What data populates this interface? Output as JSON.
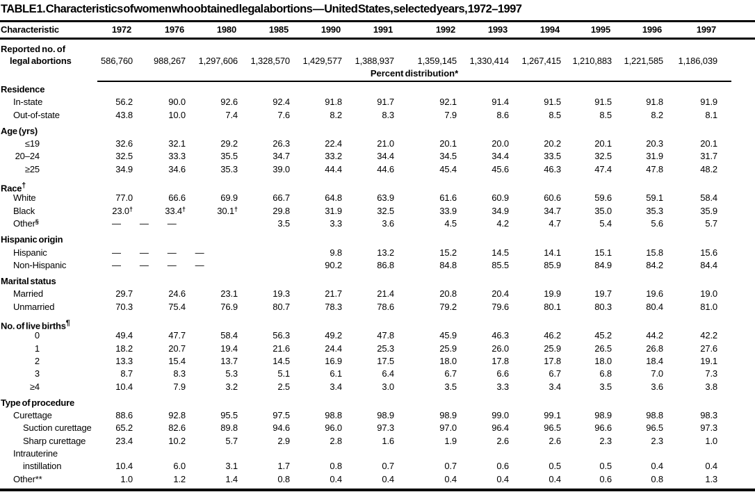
{
  "title": "TABLE 1. Characteristics of women who obtained legal abortions — United States, selected years, 1972–1997",
  "table": {
    "col_header": "Characteristic",
    "years": [
      "1972",
      "1976",
      "1980",
      "1985",
      "1990",
      "1991",
      "1992",
      "1993",
      "1994",
      "1995",
      "1996",
      "1997"
    ],
    "reported": {
      "line1": "Reported no. of",
      "line2": "legal abortions",
      "values": [
        "586,760",
        "988,267",
        "1,297,606",
        "1,328,570",
        "1,429,577",
        "1,388,937",
        "1,359,145",
        "1,330,414",
        "1,267,415",
        "1,210,883",
        "1,221,585",
        "1,186,039"
      ]
    },
    "subheader": "Percent distribution*",
    "dash": "—",
    "sections": [
      {
        "label": "Residence",
        "rows": [
          {
            "label": "In-state",
            "indent": 1,
            "values": [
              "56.2",
              "90.0",
              "92.6",
              "92.4",
              "91.8",
              "91.7",
              "92.1",
              "91.4",
              "91.5",
              "91.5",
              "91.8",
              "91.9"
            ]
          },
          {
            "label": "Out-of-state",
            "indent": 1,
            "values": [
              "43.8",
              "10.0",
              "7.4",
              "7.6",
              "8.2",
              "8.3",
              "7.9",
              "8.6",
              "8.5",
              "8.5",
              "8.2",
              "8.1"
            ]
          }
        ]
      },
      {
        "label": "Age (yrs)",
        "rows": [
          {
            "label": "≤19",
            "numlab": true,
            "values": [
              "32.6",
              "32.1",
              "29.2",
              "26.3",
              "22.4",
              "21.0",
              "20.1",
              "20.0",
              "20.2",
              "20.1",
              "20.3",
              "20.1"
            ]
          },
          {
            "label": "20–24",
            "numlab": true,
            "values": [
              "32.5",
              "33.3",
              "35.5",
              "34.7",
              "33.2",
              "34.4",
              "34.5",
              "34.4",
              "33.5",
              "32.5",
              "31.9",
              "31.7"
            ]
          },
          {
            "label": "≥25",
            "numlab": true,
            "values": [
              "34.9",
              "34.6",
              "35.3",
              "39.0",
              "44.4",
              "44.6",
              "45.4",
              "45.6",
              "46.3",
              "47.4",
              "47.8",
              "48.2"
            ]
          }
        ]
      },
      {
        "label": "Race",
        "sup": "†",
        "rows": [
          {
            "label": "White",
            "indent": 1,
            "values": [
              "77.0",
              "66.6",
              "69.9",
              "66.7",
              "64.8",
              "63.9",
              "61.6",
              "60.9",
              "60.6",
              "59.6",
              "59.1",
              "58.4"
            ]
          },
          {
            "label": "Black",
            "indent": 1,
            "values": [
              "23.0†",
              "33.4†",
              "30.1†",
              "29.8",
              "31.9",
              "32.5",
              "33.9",
              "34.9",
              "34.7",
              "35.0",
              "35.3",
              "35.9"
            ]
          },
          {
            "label": "Other",
            "sup": "§",
            "indent": 1,
            "dashes": 3,
            "values": [
              "3.5",
              "3.3",
              "3.6",
              "4.5",
              "4.2",
              "4.7",
              "5.4",
              "5.6",
              "5.7"
            ]
          }
        ]
      },
      {
        "label": "Hispanic origin",
        "rows": [
          {
            "label": "Hispanic",
            "indent": 1,
            "dashes": 4,
            "values": [
              "9.8",
              "13.2",
              "15.2",
              "14.5",
              "14.1",
              "15.1",
              "15.8",
              "15.6"
            ]
          },
          {
            "label": "Non-Hispanic",
            "indent": 1,
            "dashes": 4,
            "values": [
              "90.2",
              "86.8",
              "84.8",
              "85.5",
              "85.9",
              "84.9",
              "84.2",
              "84.4"
            ]
          }
        ]
      },
      {
        "label": "Marital status",
        "rows": [
          {
            "label": "Married",
            "indent": 1,
            "values": [
              "29.7",
              "24.6",
              "23.1",
              "19.3",
              "21.7",
              "21.4",
              "20.8",
              "20.4",
              "19.9",
              "19.7",
              "19.6",
              "19.0"
            ]
          },
          {
            "label": "Unmarried",
            "indent": 1,
            "values": [
              "70.3",
              "75.4",
              "76.9",
              "80.7",
              "78.3",
              "78.6",
              "79.2",
              "79.6",
              "80.1",
              "80.3",
              "80.4",
              "81.0"
            ]
          }
        ]
      },
      {
        "label": "No. of live births",
        "sup": "¶",
        "rows": [
          {
            "label": "0",
            "numlab": true,
            "values": [
              "49.4",
              "47.7",
              "58.4",
              "56.3",
              "49.2",
              "47.8",
              "45.9",
              "46.3",
              "46.2",
              "45.2",
              "44.2",
              "42.2"
            ]
          },
          {
            "label": "1",
            "numlab": true,
            "values": [
              "18.2",
              "20.7",
              "19.4",
              "21.6",
              "24.4",
              "25.3",
              "25.9",
              "26.0",
              "25.9",
              "26.5",
              "26.8",
              "27.6"
            ]
          },
          {
            "label": "2",
            "numlab": true,
            "values": [
              "13.3",
              "15.4",
              "13.7",
              "14.5",
              "16.9",
              "17.5",
              "18.0",
              "17.8",
              "17.8",
              "18.0",
              "18.4",
              "19.1"
            ]
          },
          {
            "label": "3",
            "numlab": true,
            "values": [
              "8.7",
              "8.3",
              "5.3",
              "5.1",
              "6.1",
              "6.4",
              "6.7",
              "6.6",
              "6.7",
              "6.8",
              "7.0",
              "7.3"
            ]
          },
          {
            "label": "≥4",
            "numlab": true,
            "values": [
              "10.4",
              "7.9",
              "3.2",
              "2.5",
              "3.4",
              "3.0",
              "3.5",
              "3.3",
              "3.4",
              "3.5",
              "3.6",
              "3.8"
            ]
          }
        ]
      },
      {
        "label": "Type of procedure",
        "rows": [
          {
            "label": "Curettage",
            "indent": 1,
            "values": [
              "88.6",
              "92.8",
              "95.5",
              "97.5",
              "98.8",
              "98.9",
              "98.9",
              "99.0",
              "99.1",
              "98.9",
              "98.8",
              "98.3"
            ]
          },
          {
            "label": "Suction curettage",
            "indent": 2,
            "values": [
              "65.2",
              "82.6",
              "89.8",
              "94.6",
              "96.0",
              "97.3",
              "97.0",
              "96.4",
              "96.5",
              "96.6",
              "96.5",
              "97.3"
            ]
          },
          {
            "label": "Sharp curettage",
            "indent": 2,
            "values": [
              "23.4",
              "10.2",
              "5.7",
              "2.9",
              "2.8",
              "1.6",
              "1.9",
              "2.6",
              "2.6",
              "2.3",
              "2.3",
              "1.0"
            ]
          },
          {
            "label": "Intrauterine",
            "indent": 1,
            "label2": "instillation",
            "values": [
              "10.4",
              "6.0",
              "3.1",
              "1.7",
              "0.8",
              "0.7",
              "0.7",
              "0.6",
              "0.5",
              "0.5",
              "0.4",
              "0.4"
            ]
          },
          {
            "label": "Other**",
            "indent": 1,
            "values": [
              "1.0",
              "1.2",
              "1.4",
              "0.8",
              "0.4",
              "0.4",
              "0.4",
              "0.4",
              "0.4",
              "0.6",
              "0.8",
              "1.3"
            ]
          }
        ]
      }
    ]
  }
}
